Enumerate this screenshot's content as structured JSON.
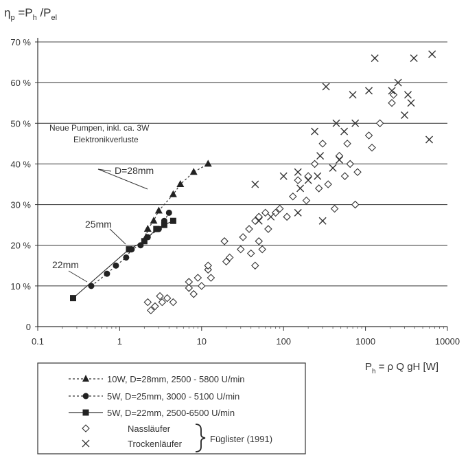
{
  "chart_data": {
    "type": "scatter",
    "title": "",
    "ylabel_parts": {
      "eta": "η",
      "eta_sub": "p",
      "eq": " =P",
      "h_sub": "h",
      "slash": " /P",
      "el_sub": "el"
    },
    "xlabel_parts": {
      "p": "P",
      "h_sub": "h",
      "rest": " = ρ Q gH [W]"
    },
    "x_scale": "log",
    "xlim": [
      0.1,
      10000
    ],
    "ylim": [
      0,
      70
    ],
    "grid": "horizontal",
    "x_ticks": [
      {
        "value": 0.1,
        "label": "0.1"
      },
      {
        "value": 1,
        "label": "1"
      },
      {
        "value": 10,
        "label": "10"
      },
      {
        "value": 100,
        "label": "100"
      },
      {
        "value": 1000,
        "label": "1000"
      },
      {
        "value": 10000,
        "label": "10000"
      }
    ],
    "y_ticks": [
      {
        "value": 0,
        "label": "0"
      },
      {
        "value": 10,
        "label": "10 %"
      },
      {
        "value": 20,
        "label": "20 %"
      },
      {
        "value": 30,
        "label": "30 %"
      },
      {
        "value": 40,
        "label": "40 %"
      },
      {
        "value": 50,
        "label": "50 %"
      },
      {
        "value": 60,
        "label": "60 %"
      },
      {
        "value": 70,
        "label": "70 %"
      }
    ],
    "annotations": {
      "new_pumps_line1": "Neue Pumpen, inkl. ca. 3W",
      "new_pumps_line2": "Elektronikverluste",
      "d28": "D=28mm",
      "d25": "25mm",
      "d22": "22mm"
    },
    "legend": {
      "position": "bottom-left",
      "entries": [
        {
          "label": "10W, D=28mm, 2500 - 5800 U/min"
        },
        {
          "label": "5W, D=25mm, 3000 - 5100 U/min"
        },
        {
          "label": "5W, D=22mm, 2500-6500 U/min"
        },
        {
          "label": "Nassläufer"
        },
        {
          "label": "Trockenläufer"
        }
      ],
      "brace_label": "Füglister (1991)"
    },
    "series": [
      {
        "marker": "triangle",
        "line": "dashed",
        "points": [
          [
            2.1,
            22
          ],
          [
            2.2,
            24
          ],
          [
            2.6,
            26
          ],
          [
            3.0,
            28.5
          ],
          [
            4.5,
            32.5
          ],
          [
            5.5,
            35
          ],
          [
            8,
            38
          ],
          [
            12,
            40
          ]
        ]
      },
      {
        "marker": "circle",
        "line": "dashed",
        "points": [
          [
            0.45,
            10
          ],
          [
            0.7,
            13
          ],
          [
            0.9,
            15
          ],
          [
            1.2,
            17
          ],
          [
            1.4,
            19
          ],
          [
            1.8,
            20
          ],
          [
            2.2,
            22
          ],
          [
            3.0,
            24
          ],
          [
            3.5,
            26
          ],
          [
            4.0,
            28
          ]
        ]
      },
      {
        "marker": "square",
        "line": "solid",
        "points": [
          [
            0.27,
            7
          ],
          [
            1.3,
            19
          ],
          [
            2.0,
            21
          ],
          [
            2.8,
            24
          ],
          [
            3.5,
            25
          ],
          [
            4.5,
            26
          ]
        ]
      },
      {
        "marker": "diamond-open",
        "line": "none",
        "points": [
          [
            2.2,
            6
          ],
          [
            2.4,
            4
          ],
          [
            2.7,
            5
          ],
          [
            3.1,
            7.5
          ],
          [
            3.3,
            6
          ],
          [
            3.8,
            7
          ],
          [
            4.5,
            6
          ],
          [
            7,
            9.5
          ],
          [
            7,
            11
          ],
          [
            8,
            8
          ],
          [
            9,
            12
          ],
          [
            10,
            10
          ],
          [
            12,
            14
          ],
          [
            12,
            15
          ],
          [
            13,
            12
          ],
          [
            19,
            21
          ],
          [
            20,
            16
          ],
          [
            22,
            17
          ],
          [
            30,
            19
          ],
          [
            32,
            22
          ],
          [
            38,
            24
          ],
          [
            40,
            18
          ],
          [
            45,
            26
          ],
          [
            45,
            15
          ],
          [
            50,
            21
          ],
          [
            50,
            27
          ],
          [
            55,
            19
          ],
          [
            60,
            28
          ],
          [
            65,
            24
          ],
          [
            80,
            28
          ],
          [
            90,
            29
          ],
          [
            110,
            27
          ],
          [
            130,
            32
          ],
          [
            150,
            36
          ],
          [
            190,
            31
          ],
          [
            200,
            37
          ],
          [
            240,
            40
          ],
          [
            270,
            34
          ],
          [
            300,
            45
          ],
          [
            350,
            35
          ],
          [
            420,
            29
          ],
          [
            480,
            42
          ],
          [
            560,
            37
          ],
          [
            600,
            45
          ],
          [
            650,
            40
          ],
          [
            750,
            30
          ],
          [
            800,
            38
          ],
          [
            1100,
            47
          ],
          [
            1200,
            44
          ],
          [
            1500,
            50
          ],
          [
            2100,
            55
          ],
          [
            2200,
            57
          ]
        ]
      },
      {
        "marker": "x",
        "line": "none",
        "points": [
          [
            45,
            35
          ],
          [
            50,
            26
          ],
          [
            70,
            27
          ],
          [
            100,
            37
          ],
          [
            150,
            28
          ],
          [
            150,
            38
          ],
          [
            160,
            34
          ],
          [
            200,
            36
          ],
          [
            240,
            48
          ],
          [
            260,
            37
          ],
          [
            280,
            42
          ],
          [
            300,
            26
          ],
          [
            330,
            59
          ],
          [
            400,
            39
          ],
          [
            440,
            50
          ],
          [
            480,
            41
          ],
          [
            550,
            48
          ],
          [
            700,
            57
          ],
          [
            750,
            50
          ],
          [
            1100,
            58
          ],
          [
            1300,
            66
          ],
          [
            2100,
            58
          ],
          [
            2500,
            60
          ],
          [
            3000,
            52
          ],
          [
            3300,
            57
          ],
          [
            3600,
            55
          ],
          [
            3900,
            66
          ],
          [
            6000,
            46
          ],
          [
            6500,
            67
          ]
        ]
      }
    ]
  }
}
